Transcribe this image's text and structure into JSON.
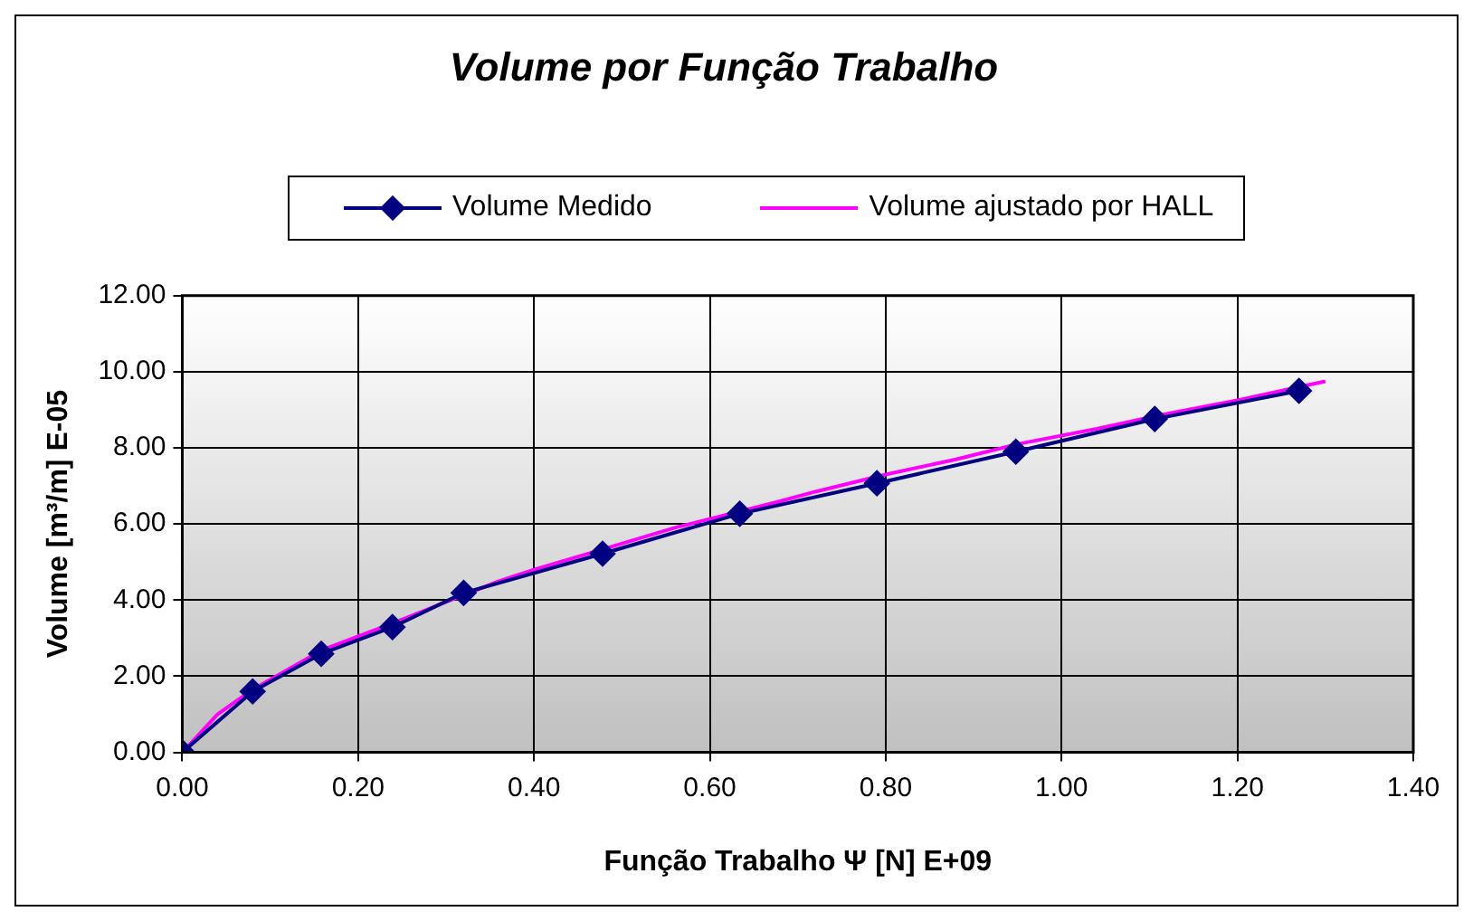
{
  "chart_data": {
    "type": "line",
    "title": "Volume por Função Trabalho",
    "xlabel": "Função Trabalho Ψ [N] E+09",
    "ylabel": "Volume [m³/m] E-05",
    "xlim": [
      0,
      1.4
    ],
    "xticks": [
      {
        "value": 0,
        "label": "0.00"
      },
      {
        "value": 0.2,
        "label": "0.20"
      },
      {
        "value": 0.4,
        "label": "0.40"
      },
      {
        "value": 0.6,
        "label": "0.60"
      },
      {
        "value": 0.8,
        "label": "0.80"
      },
      {
        "value": 1,
        "label": "1.00"
      },
      {
        "value": 1.2,
        "label": "1.20"
      },
      {
        "value": 1.4,
        "label": "1.40"
      }
    ],
    "ylim": [
      0,
      12
    ],
    "yticks": [
      {
        "value": 0,
        "label": "0.00"
      },
      {
        "value": 2,
        "label": "2.00"
      },
      {
        "value": 4,
        "label": "4.00"
      },
      {
        "value": 6,
        "label": "6.00"
      },
      {
        "value": 8,
        "label": "8.00"
      },
      {
        "value": 10,
        "label": "10.00"
      },
      {
        "value": 12,
        "label": "12.00"
      }
    ],
    "grid": true,
    "legend": "top",
    "series": [
      {
        "name": "Volume Medido",
        "color": "#000080",
        "marker": "diamond",
        "x": [
          0,
          0.08,
          0.158,
          0.239,
          0.32,
          0.478,
          0.634,
          0.79,
          0.948,
          1.106,
          1.27
        ],
        "values": [
          0,
          1.6,
          2.59,
          3.29,
          4.19,
          5.22,
          6.27,
          7.07,
          7.9,
          8.76,
          9.5
        ]
      },
      {
        "name": "Volume ajustado por HALL",
        "color": "#ff00ff",
        "marker": "none",
        "x": [
          0,
          0.04,
          0.08,
          0.16,
          0.24,
          0.36,
          0.4,
          0.48,
          0.56,
          0.68,
          0.72,
          0.8,
          0.88,
          0.95,
          1.04,
          1.11,
          1.2,
          1.27,
          1.3
        ],
        "values": [
          0,
          1.0,
          1.65,
          2.7,
          3.4,
          4.5,
          4.8,
          5.35,
          5.9,
          6.6,
          6.85,
          7.3,
          7.7,
          8.1,
          8.5,
          8.85,
          9.25,
          9.6,
          9.75
        ]
      }
    ]
  }
}
